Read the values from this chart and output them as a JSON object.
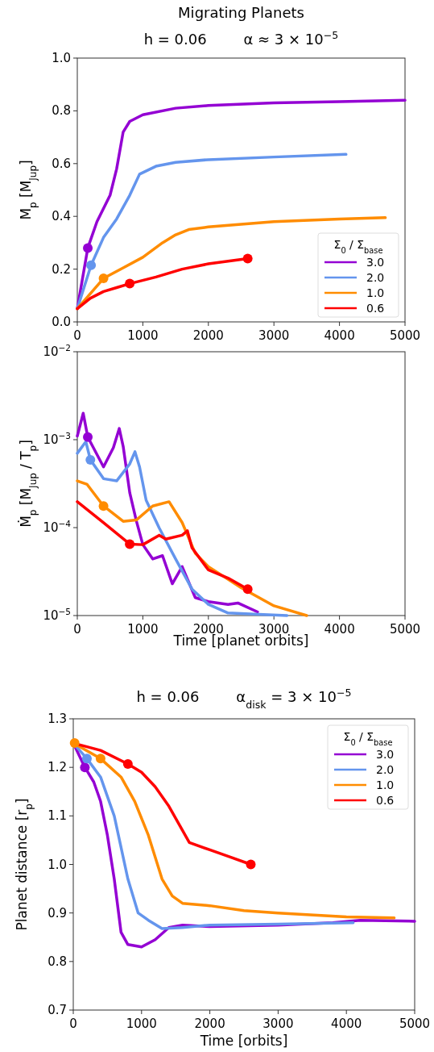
{
  "chart_data": [
    {
      "type": "line",
      "title": "Migrating Planets",
      "subtitle": "h = 0.06        α ≈ 3 × 10$^{−5}$",
      "ylabel": "M$_{p}$ [M$_{Jup}$]",
      "legend_title": "Σ$_{0}$ / Σ$_{base}$",
      "legend": "bottom right",
      "grid": false,
      "xlim": [
        0,
        5000
      ],
      "xticks": [
        0,
        1000,
        2000,
        3000,
        4000,
        5000
      ],
      "ylim": [
        0,
        1
      ],
      "yticks": [
        {
          "value": 0,
          "label": "0.0"
        },
        {
          "value": 0.2,
          "label": "0.2"
        },
        {
          "value": 0.4,
          "label": "0.4"
        },
        {
          "value": 0.6,
          "label": "0.6"
        },
        {
          "value": 0.8,
          "label": "0.8"
        },
        {
          "value": 1,
          "label": "1.0"
        }
      ],
      "series": [
        {
          "name": "3.0",
          "color": "#9400d3",
          "x": [
            0,
            160,
            300,
            500,
            600,
            700,
            800,
            1000,
            1500,
            2000,
            3000,
            4000,
            5000
          ],
          "values": [
            0.05,
            0.28,
            0.38,
            0.48,
            0.58,
            0.72,
            0.76,
            0.785,
            0.81,
            0.82,
            0.83,
            0.835,
            0.84
          ]
        },
        {
          "name": "2.0",
          "color": "#6495ed",
          "x": [
            0,
            210,
            400,
            600,
            800,
            950,
            1200,
            1500,
            2000,
            3000,
            4100
          ],
          "values": [
            0.05,
            0.215,
            0.32,
            0.39,
            0.48,
            0.56,
            0.59,
            0.605,
            0.615,
            0.625,
            0.635
          ]
        },
        {
          "name": "1.0",
          "color": "#ff8c00",
          "x": [
            0,
            400,
            700,
            1000,
            1300,
            1500,
            1700,
            2000,
            3000,
            4000,
            4700
          ],
          "values": [
            0.05,
            0.165,
            0.205,
            0.245,
            0.3,
            0.33,
            0.35,
            0.36,
            0.38,
            0.39,
            0.395
          ]
        },
        {
          "name": "0.6",
          "color": "#ff0000",
          "x": [
            0,
            200,
            400,
            600,
            800,
            1200,
            1600,
            2000,
            2600
          ],
          "values": [
            0.05,
            0.09,
            0.115,
            0.13,
            0.145,
            0.17,
            0.2,
            0.22,
            0.24
          ]
        },
        {
          "type": "scatter",
          "x": [
            160,
            210,
            400,
            800,
            2600
          ],
          "values": [
            0.28,
            0.215,
            0.165,
            0.145,
            0.24
          ],
          "colors": [
            "#9400d3",
            "#6495ed",
            "#ff8c00",
            "#ff0000",
            "#ff0000"
          ]
        }
      ]
    },
    {
      "type": "line",
      "xlabel": "Time [planet orbits]",
      "ylabel": "Ṁ$_{p}$ [M$_{Jup}$ / T$_{p}$]",
      "legend": false,
      "grid": false,
      "log": "y",
      "xlim": [
        0,
        5000
      ],
      "xticks": [
        0,
        1000,
        2000,
        3000,
        4000,
        5000
      ],
      "ylim": [
        1e-05,
        0.01
      ],
      "yticks": [
        {
          "value": 1e-05,
          "label": "10$^{−5}$"
        },
        {
          "value": 0.0001,
          "label": "10$^{−4}$"
        },
        {
          "value": 0.001,
          "label": "10$^{−3}$"
        },
        {
          "value": 0.01,
          "label": "10$^{−2}$"
        }
      ],
      "series": [
        {
          "color": "#9400d3",
          "x": [
            0,
            90,
            160,
            400,
            550,
            640,
            700,
            800,
            900,
            1000,
            1150,
            1300,
            1450,
            1600,
            1800,
            2000,
            2300,
            2450,
            2750
          ],
          "values": [
            0.0011,
            0.002,
            0.00107,
            0.00049,
            0.00081,
            0.00134,
            0.00084,
            0.00025,
            0.00012,
            6.4e-05,
            4.4e-05,
            4.8e-05,
            2.3e-05,
            3.6e-05,
            1.6e-05,
            1.44e-05,
            1.34e-05,
            1.39e-05,
            1.1e-05
          ]
        },
        {
          "color": "#6495ed",
          "x": [
            0,
            130,
            200,
            400,
            600,
            800,
            880,
            950,
            1050,
            1250,
            1500,
            1750,
            2000,
            2300,
            2700,
            3200
          ],
          "values": [
            0.0007,
            0.00095,
            0.00059,
            0.00036,
            0.00034,
            0.00053,
            0.00073,
            0.00049,
            0.000205,
            9.9e-05,
            4.4e-05,
            2e-05,
            1.34e-05,
            1.07e-05,
            1.04e-05,
            1e-05
          ]
        },
        {
          "color": "#ff8c00",
          "x": [
            0,
            150,
            400,
            700,
            900,
            1150,
            1400,
            1600,
            1800,
            2000,
            2500,
            3000,
            3500
          ],
          "values": [
            0.00034,
            0.00031,
            0.000176,
            0.000118,
            0.000122,
            0.000176,
            0.000197,
            0.000114,
            5.1e-05,
            3.6e-05,
            2.07e-05,
            1.29e-05,
            1e-05
          ]
        },
        {
          "color": "#ff0000",
          "x": [
            0,
            400,
            800,
            1000,
            1250,
            1350,
            1600,
            1680,
            1750,
            2000,
            2300,
            2600
          ],
          "values": [
            0.000197,
            0.000114,
            6.5e-05,
            6.4e-05,
            8.2e-05,
            7.4e-05,
            8.2e-05,
            9.2e-05,
            5.9e-05,
            3.3e-05,
            2.67e-05,
            2e-05
          ]
        },
        {
          "type": "scatter",
          "x": [
            160,
            200,
            400,
            800,
            2600
          ],
          "values": [
            0.00107,
            0.00059,
            0.000176,
            6.5e-05,
            2e-05
          ],
          "colors": [
            "#9400d3",
            "#6495ed",
            "#ff8c00",
            "#ff0000",
            "#ff0000"
          ]
        }
      ]
    },
    {
      "type": "line",
      "title": "h = 0.06        α$_{disk}$ = 3 × 10$^{−5}$",
      "xlabel": "Time [orbits]",
      "ylabel": "Planet distance [r$_{p}$]",
      "legend_title": "Σ$_{0}$ / Σ$_{base}$",
      "legend": "top right",
      "grid": false,
      "xlim": [
        0,
        5000
      ],
      "xticks": [
        0,
        1000,
        2000,
        3000,
        4000,
        5000
      ],
      "ylim": [
        0.7,
        1.3
      ],
      "yticks": [
        {
          "value": 0.7,
          "label": "0.7"
        },
        {
          "value": 0.8,
          "label": "0.8"
        },
        {
          "value": 0.9,
          "label": "0.9"
        },
        {
          "value": 1,
          "label": "1.0"
        },
        {
          "value": 1.1,
          "label": "1.1"
        },
        {
          "value": 1.2,
          "label": "1.2"
        },
        {
          "value": 1.3,
          "label": "1.3"
        }
      ],
      "series": [
        {
          "name": "3.0",
          "color": "#9400d3",
          "x": [
            0,
            170,
            300,
            400,
            500,
            600,
            700,
            800,
            1000,
            1200,
            1400,
            1600,
            2000,
            3000,
            3800,
            4200,
            5000
          ],
          "values": [
            1.25,
            1.2,
            1.17,
            1.13,
            1.06,
            0.97,
            0.86,
            0.835,
            0.83,
            0.845,
            0.87,
            0.875,
            0.872,
            0.875,
            0.88,
            0.885,
            0.883
          ]
        },
        {
          "name": "2.0",
          "color": "#6495ed",
          "x": [
            0,
            200,
            400,
            600,
            800,
            950,
            1100,
            1300,
            1600,
            2000,
            3000,
            4100
          ],
          "values": [
            1.25,
            1.218,
            1.18,
            1.1,
            0.97,
            0.9,
            0.885,
            0.868,
            0.87,
            0.875,
            0.877,
            0.88
          ]
        },
        {
          "name": "1.0",
          "color": "#ff8c00",
          "x": [
            0,
            400,
            700,
            900,
            1100,
            1300,
            1450,
            1600,
            2000,
            2500,
            3000,
            4000,
            4700
          ],
          "values": [
            1.25,
            1.218,
            1.18,
            1.13,
            1.06,
            0.97,
            0.935,
            0.92,
            0.915,
            0.905,
            0.9,
            0.892,
            0.89
          ]
        },
        {
          "name": "0.6",
          "color": "#ff0000",
          "x": [
            0,
            400,
            800,
            1000,
            1200,
            1400,
            1600,
            1700,
            2000,
            2300,
            2600
          ],
          "values": [
            1.25,
            1.235,
            1.207,
            1.19,
            1.16,
            1.12,
            1.07,
            1.045,
            1.03,
            1.015,
            1.0
          ]
        },
        {
          "type": "scatter",
          "x": [
            20,
            170,
            200,
            400,
            800,
            2600
          ],
          "values": [
            1.25,
            1.2,
            1.218,
            1.218,
            1.207,
            1.0
          ],
          "colors": [
            "#ff8c00",
            "#9400d3",
            "#6495ed",
            "#ff8c00",
            "#ff0000",
            "#ff0000"
          ]
        }
      ]
    }
  ]
}
